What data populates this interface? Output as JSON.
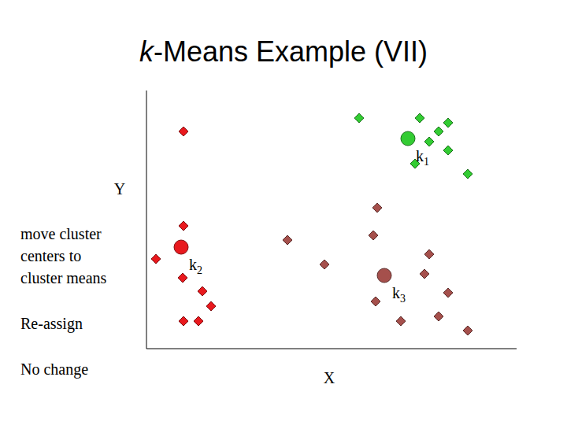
{
  "chart_data": {
    "type": "scatter",
    "title": "k-Means Example (VII)",
    "x_label": "X",
    "y_label": "Y",
    "xlim": [
      0,
      470
    ],
    "ylim": [
      0,
      328
    ],
    "tick_labels": false,
    "grid": false,
    "annotations": [
      "move cluster centers to cluster means",
      "Re-assign",
      "No change"
    ],
    "series": [
      {
        "color": "#33cc33",
        "marker": "diamond",
        "x": [
          270,
          347,
          383,
          371,
          359,
          341,
          383,
          408
        ],
        "values": [
          293,
          293,
          287,
          276,
          263,
          235,
          252,
          222
        ],
        "center": {
          "x": 332,
          "y": 267,
          "label": "k",
          "subscript": "1"
        }
      },
      {
        "color": "#e8191e",
        "marker": "diamond",
        "x": [
          47,
          47,
          12,
          46,
          71,
          82,
          47,
          66
        ],
        "values": [
          276,
          156,
          114,
          90,
          73,
          54,
          35,
          35
        ],
        "center": {
          "x": 44,
          "y": 129,
          "label": "k",
          "subscript": "2"
        }
      },
      {
        "color": "#a5504c",
        "marker": "diamond",
        "x": [
          293,
          288,
          179,
          359,
          226,
          353,
          291,
          383,
          323,
          371,
          408
        ],
        "values": [
          179,
          144,
          138,
          120,
          107,
          95,
          60,
          71,
          35,
          41,
          23
        ],
        "center": {
          "x": 302,
          "y": 93,
          "label": "k",
          "subscript": "3"
        }
      }
    ]
  }
}
